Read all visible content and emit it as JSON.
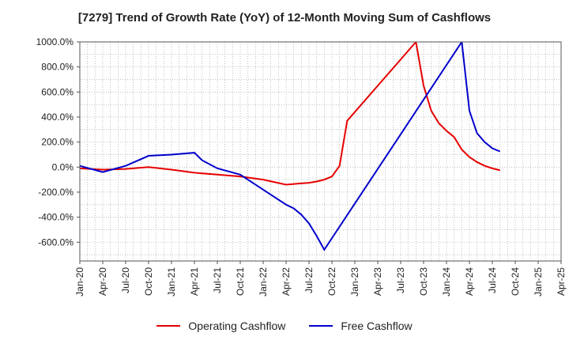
{
  "chart_data": {
    "type": "line",
    "title": "[7279]  Trend of Growth Rate (YoY) of 12-Month Moving Sum of Cashflows",
    "xlabel": "",
    "ylabel": "",
    "ylim": [
      -750,
      1000
    ],
    "yticks": [
      1000,
      800,
      600,
      400,
      200,
      0,
      -200,
      -400,
      -600
    ],
    "ytick_labels": [
      "1000.0%",
      "800.0%",
      "600.0%",
      "400.0%",
      "200.0%",
      "0.0%",
      "-200.0%",
      "-400.0%",
      "-600.0%"
    ],
    "xtick_labels": [
      "Jan-20",
      "Apr-20",
      "Jul-20",
      "Oct-20",
      "Jan-21",
      "Apr-21",
      "Jul-21",
      "Oct-21",
      "Jan-22",
      "Apr-22",
      "Jul-22",
      "Oct-22",
      "Jan-23",
      "Apr-23",
      "Jul-23",
      "Oct-23",
      "Jan-24",
      "Apr-24",
      "Jul-24",
      "Oct-24",
      "Jan-25",
      "Apr-25"
    ],
    "grid": true,
    "legend_position": "bottom",
    "series": [
      {
        "name": "Operating Cashflow",
        "color": "#e60000",
        "points": [
          [
            "2020-01",
            -10
          ],
          [
            "2020-04",
            -20
          ],
          [
            "2020-07",
            -15
          ],
          [
            "2020-10",
            0
          ],
          [
            "2021-01",
            -20
          ],
          [
            "2021-04",
            -45
          ],
          [
            "2021-07",
            -60
          ],
          [
            "2021-10",
            -75
          ],
          [
            "2022-01",
            -100
          ],
          [
            "2022-04",
            -140
          ],
          [
            "2022-07",
            -125
          ],
          [
            "2022-08",
            -115
          ],
          [
            "2022-09",
            -100
          ],
          [
            "2022-10",
            -75
          ],
          [
            "2022-11",
            10
          ],
          [
            "2022-12",
            370
          ],
          [
            "2023-09",
            1000
          ],
          [
            "2023-10",
            650
          ],
          [
            "2023-11",
            450
          ],
          [
            "2023-12",
            350
          ],
          [
            "2024-01",
            290
          ],
          [
            "2024-02",
            240
          ],
          [
            "2024-03",
            140
          ],
          [
            "2024-04",
            80
          ],
          [
            "2024-05",
            40
          ],
          [
            "2024-06",
            10
          ],
          [
            "2024-07",
            -10
          ],
          [
            "2024-08",
            -25
          ]
        ]
      },
      {
        "name": "Free Cashflow",
        "color": "#0000cc",
        "points": [
          [
            "2020-01",
            10
          ],
          [
            "2020-04",
            -40
          ],
          [
            "2020-07",
            10
          ],
          [
            "2020-10",
            90
          ],
          [
            "2021-01",
            100
          ],
          [
            "2021-04",
            115
          ],
          [
            "2021-05",
            55
          ],
          [
            "2021-07",
            -10
          ],
          [
            "2021-10",
            -60
          ],
          [
            "2022-01",
            -180
          ],
          [
            "2022-04",
            -300
          ],
          [
            "2022-05",
            -330
          ],
          [
            "2022-06",
            -380
          ],
          [
            "2022-07",
            -450
          ],
          [
            "2022-08",
            -550
          ],
          [
            "2022-09",
            -660
          ],
          [
            "2024-03",
            1000
          ],
          [
            "2024-04",
            450
          ],
          [
            "2024-05",
            270
          ],
          [
            "2024-06",
            200
          ],
          [
            "2024-07",
            150
          ],
          [
            "2024-08",
            125
          ]
        ]
      }
    ]
  }
}
